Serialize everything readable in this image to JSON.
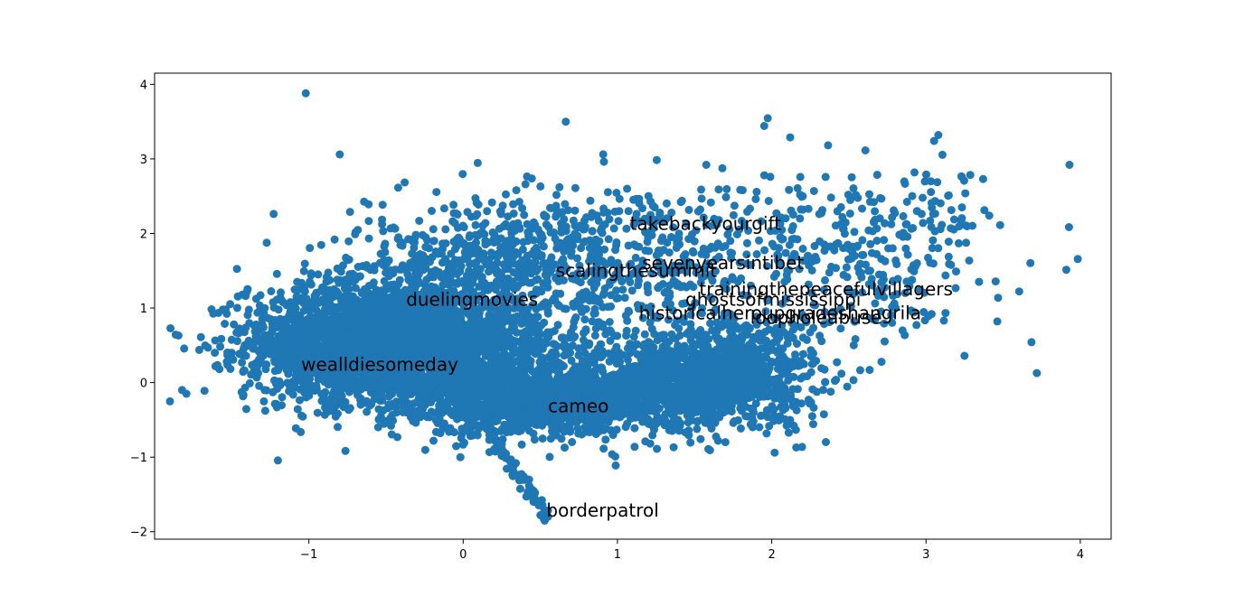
{
  "chart_data": {
    "type": "scatter",
    "title": "",
    "xlabel": "",
    "ylabel": "",
    "xlim": [
      -2.0,
      4.2
    ],
    "ylim": [
      -2.1,
      4.15
    ],
    "x_ticks": [
      -1,
      0,
      1,
      2,
      3,
      4
    ],
    "y_ticks": [
      -2,
      -1,
      0,
      1,
      2,
      3,
      4
    ],
    "x_tick_labels": [
      "−1",
      "0",
      "1",
      "2",
      "3",
      "4"
    ],
    "y_tick_labels": [
      "−2",
      "−1",
      "0",
      "1",
      "2",
      "3",
      "4"
    ],
    "grid": false,
    "marker_color": "#1f77b4",
    "annotations": [
      {
        "text": "takebackyourgift",
        "x": 1.08,
        "y": 2.05
      },
      {
        "text": "sevenyearsintibet",
        "x": 1.16,
        "y": 1.52
      },
      {
        "text": "scalingthesummit",
        "x": 0.6,
        "y": 1.42
      },
      {
        "text": "trainingthepeacefulvillagers",
        "x": 1.53,
        "y": 1.17
      },
      {
        "text": "duelingmovies",
        "x": -0.37,
        "y": 1.03
      },
      {
        "text": "ghostsofmississippi",
        "x": 1.44,
        "y": 1.03
      },
      {
        "text": "historicalheroupgradeshangrila",
        "x": 1.14,
        "y": 0.85
      },
      {
        "text": "loopholeabuse",
        "x": 1.86,
        "y": 0.79
      },
      {
        "text": "wealldiesomeday",
        "x": -1.05,
        "y": 0.16
      },
      {
        "text": "cameo",
        "x": 0.55,
        "y": -0.4
      },
      {
        "text": "borderpatrol",
        "x": 0.54,
        "y": -1.8
      }
    ],
    "clusters": [
      {
        "cx": -0.55,
        "cy": 0.55,
        "sx": 0.42,
        "sy": 0.38,
        "n": 2600
      },
      {
        "cx": -0.1,
        "cy": 0.2,
        "sx": 0.4,
        "sy": 0.35,
        "n": 900
      },
      {
        "cx": 0.45,
        "cy": -0.3,
        "sx": 0.35,
        "sy": 0.2,
        "n": 700
      },
      {
        "cx": 1.3,
        "cy": -0.05,
        "sx": 0.45,
        "sy": 0.3,
        "n": 1300
      },
      {
        "cx": 1.8,
        "cy": 0.35,
        "sx": 0.25,
        "sy": 0.25,
        "n": 300
      },
      {
        "cx": 0.9,
        "cy": 1.8,
        "sx": 0.55,
        "sy": 0.45,
        "n": 450
      },
      {
        "cx": 2.5,
        "cy": 1.7,
        "sx": 0.45,
        "sy": 0.55,
        "n": 320
      },
      {
        "cx": 3.0,
        "cy": 2.3,
        "sx": 0.25,
        "sy": 0.35,
        "n": 40
      },
      {
        "cx": 0.0,
        "cy": 1.5,
        "sx": 0.45,
        "sy": 0.4,
        "n": 450
      },
      {
        "cx": 1.0,
        "cy": 0.9,
        "sx": 0.5,
        "sy": 0.35,
        "n": 180
      }
    ],
    "trail": {
      "from": [
        0.15,
        -0.6
      ],
      "to": [
        0.55,
        -1.8
      ],
      "n": 70
    },
    "outliers": [
      {
        "x": -1.02,
        "y": 3.88
      },
      {
        "x": -0.8,
        "y": 3.06
      },
      {
        "x": 3.93,
        "y": 2.92
      },
      {
        "x": 3.08,
        "y": 3.32
      },
      {
        "x": 3.37,
        "y": 2.73
      },
      {
        "x": -1.7,
        "y": 0.61
      },
      {
        "x": 0.55,
        "y": -1.8
      },
      {
        "x": 0.53,
        "y": -1.76
      }
    ]
  }
}
